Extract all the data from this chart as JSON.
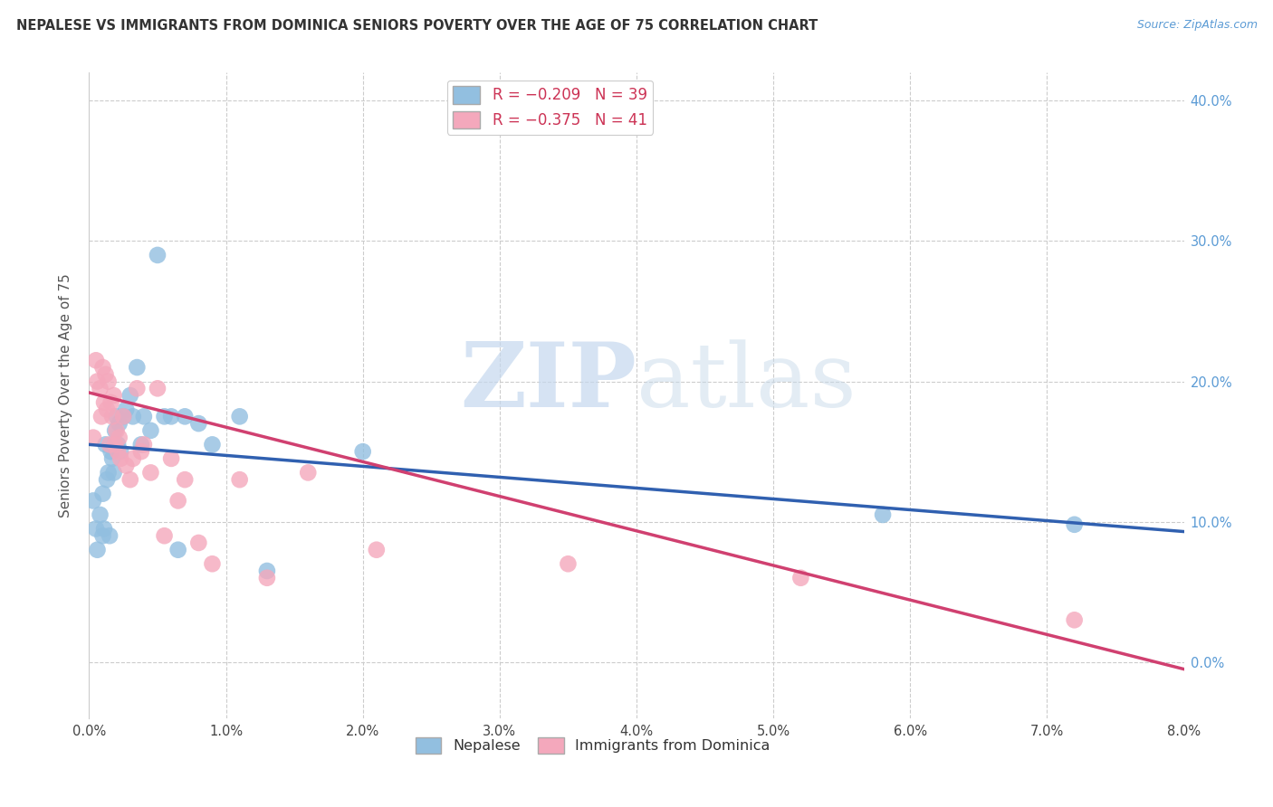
{
  "title": "NEPALESE VS IMMIGRANTS FROM DOMINICA SENIORS POVERTY OVER THE AGE OF 75 CORRELATION CHART",
  "source": "Source: ZipAtlas.com",
  "ylabel": "Seniors Poverty Over the Age of 75",
  "xlim": [
    0.0,
    0.08
  ],
  "ylim": [
    -0.04,
    0.42
  ],
  "legend_label1": "Nepalese",
  "legend_label2": "Immigrants from Dominica",
  "blue_color": "#92bfe0",
  "pink_color": "#f4a8bc",
  "blue_line_color": "#3060b0",
  "pink_line_color": "#d04070",
  "nepalese_x": [
    0.0003,
    0.0005,
    0.0006,
    0.0008,
    0.001,
    0.001,
    0.0011,
    0.0012,
    0.0013,
    0.0014,
    0.0015,
    0.0016,
    0.0017,
    0.0018,
    0.0019,
    0.002,
    0.0021,
    0.0022,
    0.0023,
    0.0025,
    0.0027,
    0.003,
    0.0032,
    0.0035,
    0.0038,
    0.004,
    0.0045,
    0.005,
    0.0055,
    0.006,
    0.0065,
    0.007,
    0.008,
    0.009,
    0.011,
    0.013,
    0.02,
    0.058,
    0.072
  ],
  "nepalese_y": [
    0.115,
    0.095,
    0.08,
    0.105,
    0.12,
    0.09,
    0.095,
    0.155,
    0.13,
    0.135,
    0.09,
    0.15,
    0.145,
    0.135,
    0.165,
    0.175,
    0.155,
    0.17,
    0.15,
    0.175,
    0.18,
    0.19,
    0.175,
    0.21,
    0.155,
    0.175,
    0.165,
    0.29,
    0.175,
    0.175,
    0.08,
    0.175,
    0.17,
    0.155,
    0.175,
    0.065,
    0.15,
    0.105,
    0.098
  ],
  "dominica_x": [
    0.0003,
    0.0005,
    0.0006,
    0.0008,
    0.0009,
    0.001,
    0.0011,
    0.0012,
    0.0013,
    0.0014,
    0.0015,
    0.0016,
    0.0017,
    0.0018,
    0.0019,
    0.002,
    0.0021,
    0.0022,
    0.0023,
    0.0025,
    0.0027,
    0.003,
    0.0032,
    0.0035,
    0.0038,
    0.004,
    0.0045,
    0.005,
    0.0055,
    0.006,
    0.0065,
    0.007,
    0.008,
    0.009,
    0.011,
    0.013,
    0.016,
    0.021,
    0.035,
    0.052,
    0.072
  ],
  "dominica_y": [
    0.16,
    0.215,
    0.2,
    0.195,
    0.175,
    0.21,
    0.185,
    0.205,
    0.18,
    0.2,
    0.155,
    0.185,
    0.175,
    0.19,
    0.155,
    0.165,
    0.15,
    0.16,
    0.145,
    0.175,
    0.14,
    0.13,
    0.145,
    0.195,
    0.15,
    0.155,
    0.135,
    0.195,
    0.09,
    0.145,
    0.115,
    0.13,
    0.085,
    0.07,
    0.13,
    0.06,
    0.135,
    0.08,
    0.07,
    0.06,
    0.03
  ],
  "nep_trend_x0": 0.0,
  "nep_trend_y0": 0.155,
  "nep_trend_x1": 0.08,
  "nep_trend_y1": 0.093,
  "dom_trend_x0": 0.0,
  "dom_trend_y0": 0.192,
  "dom_trend_x1": 0.08,
  "dom_trend_y1": -0.005
}
